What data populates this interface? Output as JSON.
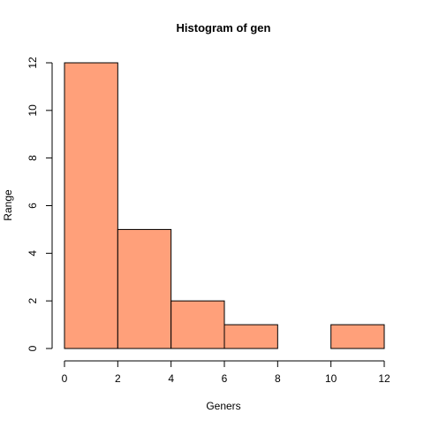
{
  "chart_data": {
    "type": "bar",
    "title": "Histogram of gen",
    "xlabel": "Geners",
    "ylabel": "Range",
    "bins": [
      {
        "x0": 0,
        "x1": 2,
        "count": 12
      },
      {
        "x0": 2,
        "x1": 4,
        "count": 5
      },
      {
        "x0": 4,
        "x1": 6,
        "count": 2
      },
      {
        "x0": 6,
        "x1": 8,
        "count": 1
      },
      {
        "x0": 8,
        "x1": 10,
        "count": 0
      },
      {
        "x0": 10,
        "x1": 12,
        "count": 1
      }
    ],
    "x_ticks": [
      "0",
      "2",
      "4",
      "6",
      "8",
      "10",
      "12"
    ],
    "y_ticks": [
      "0",
      "2",
      "4",
      "6",
      "8",
      "10",
      "12"
    ],
    "xlim": [
      0,
      12
    ],
    "ylim": [
      0,
      12
    ],
    "grid": false,
    "bar_color": "#ffa07a",
    "bar_border_color": "#000000"
  }
}
